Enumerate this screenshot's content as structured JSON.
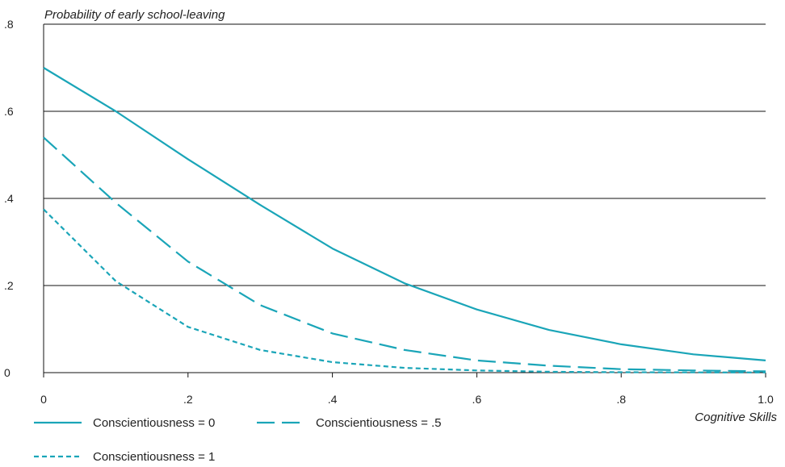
{
  "chart_data": {
    "type": "line",
    "ylabel": "Probability of early school-leaving",
    "xlabel": "Cognitive Skills",
    "xlim": [
      0,
      1.0
    ],
    "ylim": [
      0,
      0.8
    ],
    "x_ticks": [
      {
        "value": 0,
        "label": "0"
      },
      {
        "value": 0.2,
        "label": ".2"
      },
      {
        "value": 0.4,
        "label": ".4"
      },
      {
        "value": 0.6,
        "label": ".6"
      },
      {
        "value": 0.8,
        "label": ".8"
      },
      {
        "value": 1.0,
        "label": "1.0"
      }
    ],
    "y_ticks": [
      {
        "value": 0,
        "label": "0"
      },
      {
        "value": 0.2,
        "label": ".2"
      },
      {
        "value": 0.4,
        "label": ".4"
      },
      {
        "value": 0.6,
        "label": ".6"
      },
      {
        "value": 0.8,
        "label": ".8"
      }
    ],
    "grid": "horizontal",
    "legend_position": "bottom",
    "line_color": "#1aa5b8",
    "x": [
      0,
      0.1,
      0.2,
      0.3,
      0.4,
      0.5,
      0.6,
      0.7,
      0.8,
      0.9,
      1.0
    ],
    "series": [
      {
        "name": "Conscientiousness = 0",
        "style": "solid",
        "values": [
          0.7,
          0.6,
          0.49,
          0.385,
          0.285,
          0.205,
          0.145,
          0.098,
          0.065,
          0.042,
          0.028
        ]
      },
      {
        "name": "Conscientiousness = .5",
        "style": "long-dash",
        "values": [
          0.54,
          0.39,
          0.255,
          0.155,
          0.09,
          0.052,
          0.028,
          0.016,
          0.008,
          0.005,
          0.003
        ]
      },
      {
        "name": "Conscientiousness = 1",
        "style": "short-dash",
        "values": [
          0.375,
          0.21,
          0.105,
          0.052,
          0.024,
          0.011,
          0.005,
          0.002,
          0.001,
          0.0005,
          0.0003
        ]
      }
    ]
  }
}
